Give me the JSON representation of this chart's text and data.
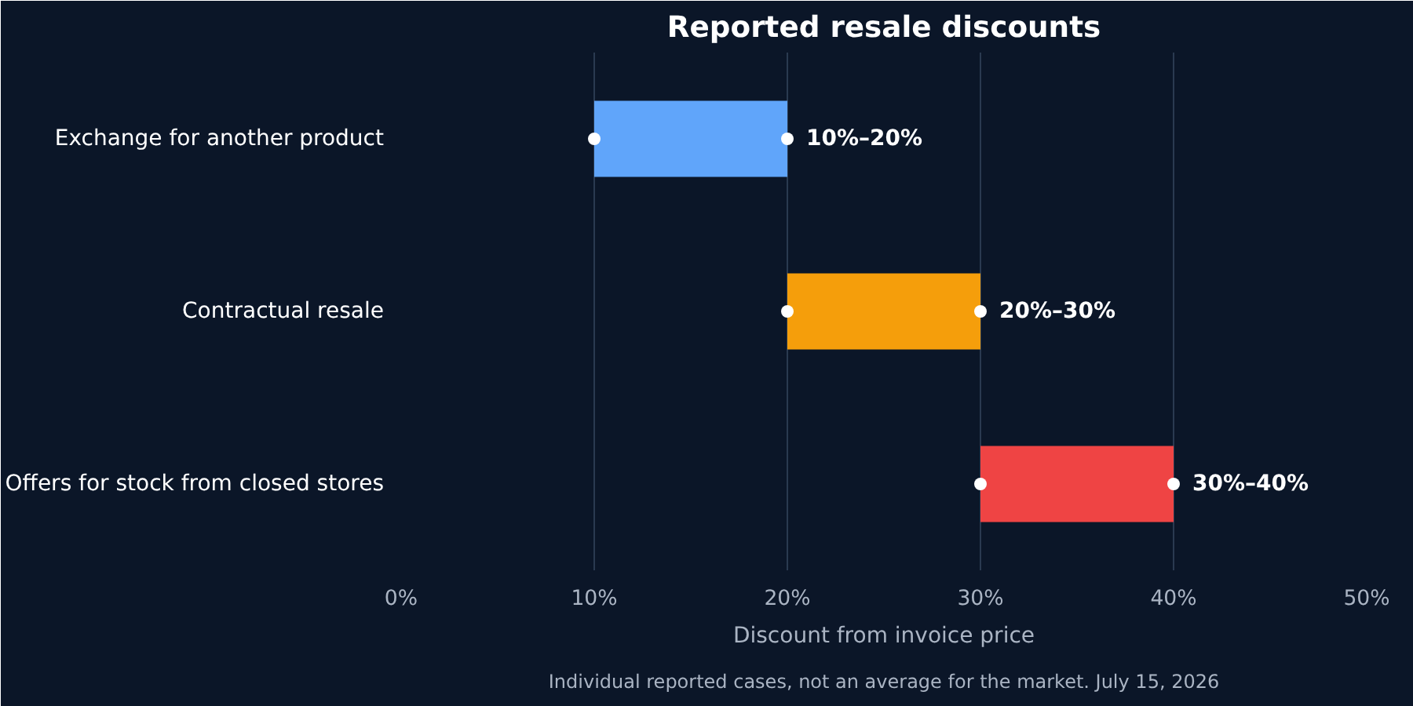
{
  "chart_data": {
    "type": "bar",
    "orientation": "horizontal",
    "title": "Reported resale discounts",
    "xlabel": "Discount from invoice price",
    "categories": [
      "Exchange for another product",
      "Contractual resale",
      "Offers for stock from closed stores"
    ],
    "series": [
      {
        "base": [
          10,
          20,
          30
        ],
        "values": [
          10,
          10,
          10
        ],
        "colors": [
          "#60a5fa",
          "#f59e0b",
          "#ef4444"
        ]
      },
      {
        "type": "scatter",
        "color": "#ffffff",
        "marker": "circle",
        "values": [
          10,
          20,
          30
        ]
      },
      {
        "type": "scatter",
        "color": "#ffffff",
        "marker": "circle",
        "values": [
          20,
          30,
          40
        ]
      }
    ],
    "xlim": [
      0,
      50
    ],
    "xticks": [
      {
        "value": 0,
        "label": "0%"
      },
      {
        "value": 10,
        "label": "10%"
      },
      {
        "value": 20,
        "label": "20%"
      },
      {
        "value": 30,
        "label": "30%"
      },
      {
        "value": 40,
        "label": "40%"
      },
      {
        "value": 50,
        "label": "50%"
      }
    ],
    "grid": "x",
    "annotations": [
      {
        "text": "10%–20%",
        "x": 20,
        "y": "Exchange for another product"
      },
      {
        "text": "20%–30%",
        "x": 30,
        "y": "Contractual resale"
      },
      {
        "text": "30%–40%",
        "x": 40,
        "y": "Offers for stock from closed stores"
      },
      "Individual reported cases, not an average for the market. July 15, 2026"
    ]
  }
}
